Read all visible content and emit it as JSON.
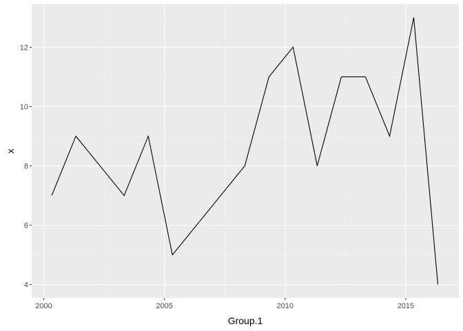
{
  "chart_data": {
    "type": "line",
    "title": "",
    "xlabel": "Group.1",
    "ylabel": "x",
    "x": [
      2000.33,
      2001.33,
      2003.33,
      2004.33,
      2005.33,
      2008.33,
      2009.33,
      2010.33,
      2011.33,
      2012.33,
      2013.33,
      2014.33,
      2015.33,
      2016.33
    ],
    "series": [
      {
        "values": [
          7,
          9,
          7,
          9,
          5,
          8,
          11,
          12,
          8,
          11,
          11,
          9,
          13,
          4
        ]
      }
    ],
    "xlim": [
      1999.5,
      2017.2
    ],
    "ylim": [
      3.55,
      13.45
    ],
    "x_ticks": [
      2000,
      2005,
      2010,
      2015
    ],
    "x_minor_ticks": [
      2002.5,
      2007.5,
      2012.5
    ],
    "y_ticks": [
      4,
      6,
      8,
      10,
      12
    ],
    "y_minor_ticks": [
      5,
      7,
      9,
      11,
      13
    ],
    "grid": true,
    "legend": "none",
    "colors": {
      "panel_background": "#ebebeb",
      "grid_major": "#ffffff",
      "grid_minor": "#f4f4f4",
      "line": "#000000",
      "tick_text": "#4d4d4d",
      "tick_mark": "#333333"
    }
  }
}
